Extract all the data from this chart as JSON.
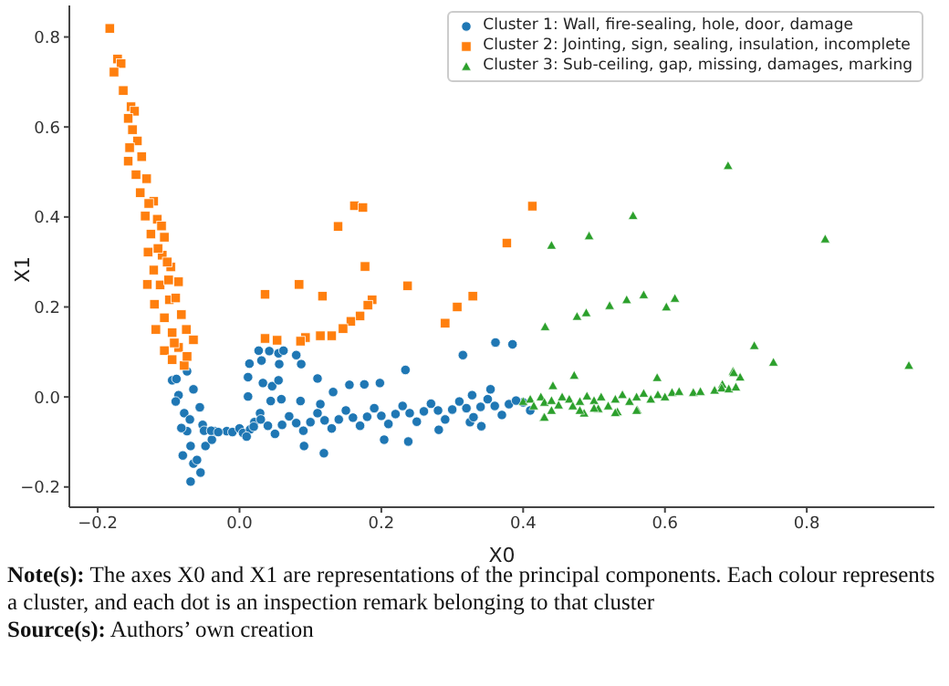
{
  "chart_data": {
    "type": "scatter",
    "xlabel": "X0",
    "ylabel": "X1",
    "xlim": [
      -0.24,
      0.98
    ],
    "ylim": [
      -0.245,
      0.87
    ],
    "xticks": [
      -0.2,
      {
        "value": 0,
        "label": "0.0"
      },
      0.2,
      0.4,
      0.6,
      0.8
    ],
    "yticks": [
      -0.2,
      {
        "value": 0,
        "label": "0.0"
      },
      0.2,
      0.4,
      0.6,
      0.8
    ],
    "grid": false,
    "legend": "top right",
    "annotations": [
      "Note(s): The axes X0 and X1 are representations of the principal components. Each colour represents a cluster, and each dot is an inspection remark belonging to that cluster",
      "Source(s): Authors’ own creation"
    ],
    "series": [
      {
        "name": "Cluster 1: Wall, fire-sealing, hole, door, damage",
        "color": "#1f77b4",
        "marker": "circle",
        "x": [
          -0.095,
          -0.074,
          -0.086,
          -0.065,
          -0.078,
          -0.056,
          -0.074,
          -0.052,
          -0.069,
          -0.048,
          -0.065,
          -0.055,
          -0.069,
          -0.039,
          -0.035,
          -0.018,
          -0.082,
          -0.089,
          -0.09,
          -0.08,
          -0.06,
          -0.07,
          0.014,
          0.031,
          0.027,
          0.042,
          0.055,
          0.062,
          0.056,
          0.08,
          0.087,
          0.012,
          0.012,
          0.033,
          0.046,
          0.055,
          0.059,
          0.044,
          0.029,
          0.021,
          0.11,
          0.132,
          0.155,
          0.176,
          0.198,
          0.234,
          0.315,
          0.361,
          0.385,
          0.328,
          0.354,
          0.086,
          0.114,
          0.119,
          0.204,
          0.238,
          0.091,
          0.281,
          0.341,
          0.325,
          -0.05,
          -0.04,
          -0.03,
          -0.01,
          0.0,
          0.005,
          0.015,
          0.02,
          0.04,
          0.06,
          0.08,
          0.1,
          0.12,
          0.14,
          0.16,
          0.18,
          0.2,
          0.22,
          0.24,
          0.26,
          0.28,
          0.3,
          0.32,
          0.34,
          0.36,
          0.38,
          0.4,
          0.01,
          0.03,
          0.05,
          0.07,
          0.09,
          0.11,
          0.13,
          0.15,
          0.17,
          0.19,
          0.21,
          0.23,
          0.25,
          0.27,
          0.29,
          0.31,
          0.33,
          0.35,
          0.37,
          0.39,
          0.41
        ],
        "values": [
          0.037,
          0.057,
          0.004,
          0.017,
          -0.036,
          -0.023,
          -0.076,
          -0.062,
          -0.109,
          -0.109,
          -0.148,
          -0.168,
          -0.188,
          -0.095,
          -0.076,
          -0.076,
          -0.069,
          0.04,
          -0.01,
          -0.13,
          -0.14,
          -0.05,
          0.074,
          0.081,
          0.103,
          0.102,
          0.097,
          0.103,
          0.073,
          0.093,
          0.073,
          0.044,
          0.001,
          0.031,
          0.024,
          0.037,
          -0.005,
          -0.009,
          -0.036,
          -0.056,
          0.041,
          0.011,
          0.027,
          0.028,
          0.031,
          0.06,
          0.093,
          0.121,
          0.117,
          0.004,
          0.017,
          -0.009,
          -0.016,
          -0.125,
          -0.095,
          -0.099,
          -0.109,
          -0.073,
          -0.065,
          -0.056,
          -0.075,
          -0.075,
          -0.078,
          -0.078,
          -0.07,
          -0.08,
          -0.072,
          -0.066,
          -0.064,
          -0.062,
          -0.058,
          -0.056,
          -0.052,
          -0.05,
          -0.046,
          -0.044,
          -0.042,
          -0.038,
          -0.036,
          -0.032,
          -0.03,
          -0.028,
          -0.025,
          -0.022,
          -0.02,
          -0.016,
          -0.012,
          -0.088,
          -0.05,
          -0.082,
          -0.043,
          -0.075,
          -0.036,
          -0.07,
          -0.03,
          -0.064,
          -0.025,
          -0.06,
          -0.02,
          -0.055,
          -0.015,
          -0.05,
          -0.01,
          -0.045,
          -0.005,
          -0.04,
          -0.008,
          -0.03
        ]
      },
      {
        "name": "Cluster 2: Jointing, sign, sealing, insulation, incomplete",
        "color": "#ff7f0e",
        "marker": "square",
        "x": [
          -0.183,
          -0.172,
          -0.167,
          -0.177,
          -0.164,
          -0.153,
          -0.148,
          -0.157,
          -0.151,
          -0.144,
          -0.155,
          -0.157,
          -0.138,
          -0.146,
          -0.131,
          -0.14,
          -0.121,
          -0.133,
          -0.116,
          -0.125,
          -0.106,
          -0.129,
          -0.109,
          -0.121,
          -0.097,
          -0.112,
          -0.086,
          -0.12,
          -0.099,
          -0.106,
          -0.082,
          -0.118,
          -0.095,
          -0.075,
          -0.106,
          -0.086,
          -0.065,
          -0.095,
          -0.078,
          -0.074,
          -0.128,
          -0.11,
          -0.102,
          -0.115,
          -0.09,
          -0.1,
          -0.13,
          -0.092,
          0.162,
          0.174,
          0.139,
          0.177,
          0.084,
          0.036,
          0.117,
          0.237,
          0.187,
          0.181,
          0.329,
          0.307,
          0.29,
          0.377,
          0.17,
          0.157,
          0.146,
          0.13,
          0.114,
          0.093,
          0.086,
          0.053,
          0.036,
          0.413
        ],
        "values": [
          0.819,
          0.751,
          0.741,
          0.722,
          0.681,
          0.645,
          0.635,
          0.619,
          0.594,
          0.569,
          0.554,
          0.524,
          0.534,
          0.494,
          0.485,
          0.454,
          0.435,
          0.402,
          0.395,
          0.362,
          0.355,
          0.322,
          0.315,
          0.282,
          0.289,
          0.249,
          0.256,
          0.206,
          0.216,
          0.176,
          0.183,
          0.15,
          0.143,
          0.15,
          0.103,
          0.11,
          0.127,
          0.083,
          0.07,
          0.09,
          0.43,
          0.38,
          0.3,
          0.33,
          0.22,
          0.26,
          0.25,
          0.12,
          0.425,
          0.421,
          0.379,
          0.29,
          0.25,
          0.228,
          0.224,
          0.247,
          0.216,
          0.204,
          0.224,
          0.2,
          0.164,
          0.342,
          0.18,
          0.168,
          0.152,
          0.136,
          0.136,
          0.132,
          0.124,
          0.126,
          0.13,
          0.424
        ]
      },
      {
        "name": "Cluster 3: Sub-ceiling, gap, missing, damages, marking",
        "color": "#2ca02c",
        "marker": "triangle",
        "x": [
          0.689,
          0.826,
          0.944,
          0.555,
          0.493,
          0.44,
          0.726,
          0.753,
          0.696,
          0.706,
          0.589,
          0.472,
          0.442,
          0.431,
          0.476,
          0.489,
          0.522,
          0.546,
          0.57,
          0.602,
          0.614,
          0.697,
          0.681,
          0.429,
          0.486,
          0.533,
          0.561,
          0.506,
          0.4,
          0.41,
          0.415,
          0.425,
          0.43,
          0.44,
          0.45,
          0.455,
          0.465,
          0.47,
          0.48,
          0.49,
          0.5,
          0.51,
          0.52,
          0.53,
          0.54,
          0.55,
          0.56,
          0.57,
          0.58,
          0.59,
          0.6,
          0.61,
          0.62,
          0.64,
          0.65,
          0.67,
          0.68,
          0.69,
          0.7,
          0.44,
          0.48,
          0.53,
          0.56,
          0.5,
          0.43
        ],
        "values": [
          0.514,
          0.351,
          0.07,
          0.403,
          0.358,
          0.337,
          0.114,
          0.077,
          0.057,
          0.044,
          0.043,
          0.048,
          0.025,
          0.156,
          0.179,
          0.187,
          0.203,
          0.216,
          0.227,
          0.2,
          0.219,
          0.054,
          0.028,
          -0.046,
          -0.036,
          -0.033,
          -0.029,
          -0.026,
          -0.01,
          -0.005,
          -0.02,
          0.0,
          -0.012,
          -0.008,
          -0.018,
          0.0,
          -0.005,
          -0.02,
          -0.01,
          0.002,
          -0.008,
          0.0,
          -0.02,
          -0.005,
          0.005,
          -0.01,
          0.0,
          0.008,
          -0.005,
          0.005,
          0.0,
          0.01,
          0.012,
          0.01,
          0.012,
          0.015,
          0.02,
          0.018,
          0.022,
          -0.03,
          -0.03,
          -0.035,
          -0.03,
          -0.025,
          -0.045
        ]
      }
    ]
  }
}
